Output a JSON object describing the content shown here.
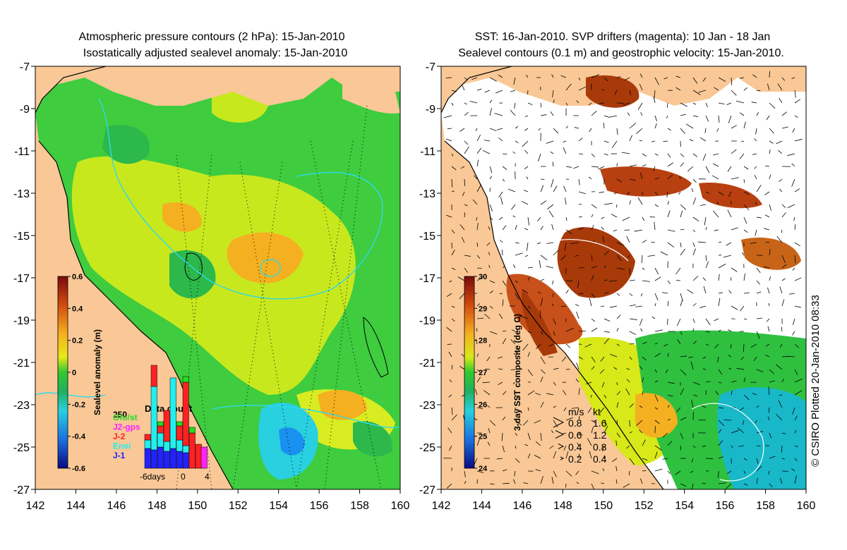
{
  "left_panel": {
    "title_line1": "Atmospheric pressure contours (2 hPa): 15-Jan-2010",
    "title_line2": "Isostatically adjusted sealevel anomaly: 15-Jan-2010",
    "y_ticks": [
      "-7",
      "-9",
      "-11",
      "-13",
      "-15",
      "-17",
      "-19",
      "-21",
      "-23",
      "-25",
      "-27"
    ],
    "x_ticks": [
      "142",
      "144",
      "146",
      "148",
      "150",
      "152",
      "154",
      "156",
      "158",
      "160"
    ],
    "colorbar": {
      "label": "Sealevel anomaly (m)",
      "ticks": [
        "0.6",
        "0.4",
        "0.2",
        "0",
        "-0.2",
        "-0.4",
        "-0.6"
      ]
    },
    "data_count": {
      "title": "Data count",
      "max_label": "250",
      "legend": [
        {
          "label": "Gfo/st",
          "color": "#22dd22"
        },
        {
          "label": "J2-gps",
          "color": "#ff22ff"
        },
        {
          "label": "J-2",
          "color": "#ff2222"
        },
        {
          "label": "Envi",
          "color": "#22eeee"
        },
        {
          "label": "J-1",
          "color": "#2222ff"
        }
      ],
      "x_labels": [
        "-6days",
        "0",
        "4"
      ]
    }
  },
  "right_panel": {
    "title_line1": "SST: 16-Jan-2010. SVP drifters (magenta): 10 Jan - 18 Jan",
    "title_line2": "Sealevel contours (0.1 m) and geostrophic velocity: 15-Jan-2010.",
    "y_ticks": [
      "-7",
      "-9",
      "-11",
      "-13",
      "-15",
      "-17",
      "-19",
      "-21",
      "-23",
      "-25",
      "-27"
    ],
    "x_ticks": [
      "142",
      "144",
      "146",
      "148",
      "150",
      "152",
      "154",
      "156",
      "158",
      "160"
    ],
    "colorbar": {
      "label": "3-day SST composite (deg C)",
      "ticks": [
        "30",
        "29",
        "28",
        "27",
        "26",
        "25",
        "24"
      ]
    },
    "velocity_legend": {
      "header_ms": "m/s",
      "header_kt": "kt",
      "rows": [
        {
          "ms": "0.8",
          "kt": "1.6"
        },
        {
          "ms": "0.6",
          "kt": "1.2"
        },
        {
          "ms": "0.4",
          "kt": "0.8"
        },
        {
          "ms": "0.2",
          "kt": "0.4"
        }
      ]
    }
  },
  "credit": "© CSIRO Plotted 20-Jan-2010 08:33",
  "colors": {
    "land": "#f9c896",
    "ocean_green": "#3fcc3f",
    "ocean_yellow": "#c8e81e",
    "ocean_orange": "#f4b020",
    "ocean_cyan": "#28d0e0",
    "sst_dark": "#a83a0a",
    "sst_teal": "#18b8c8",
    "contour_cyan": "#30d8e8"
  }
}
